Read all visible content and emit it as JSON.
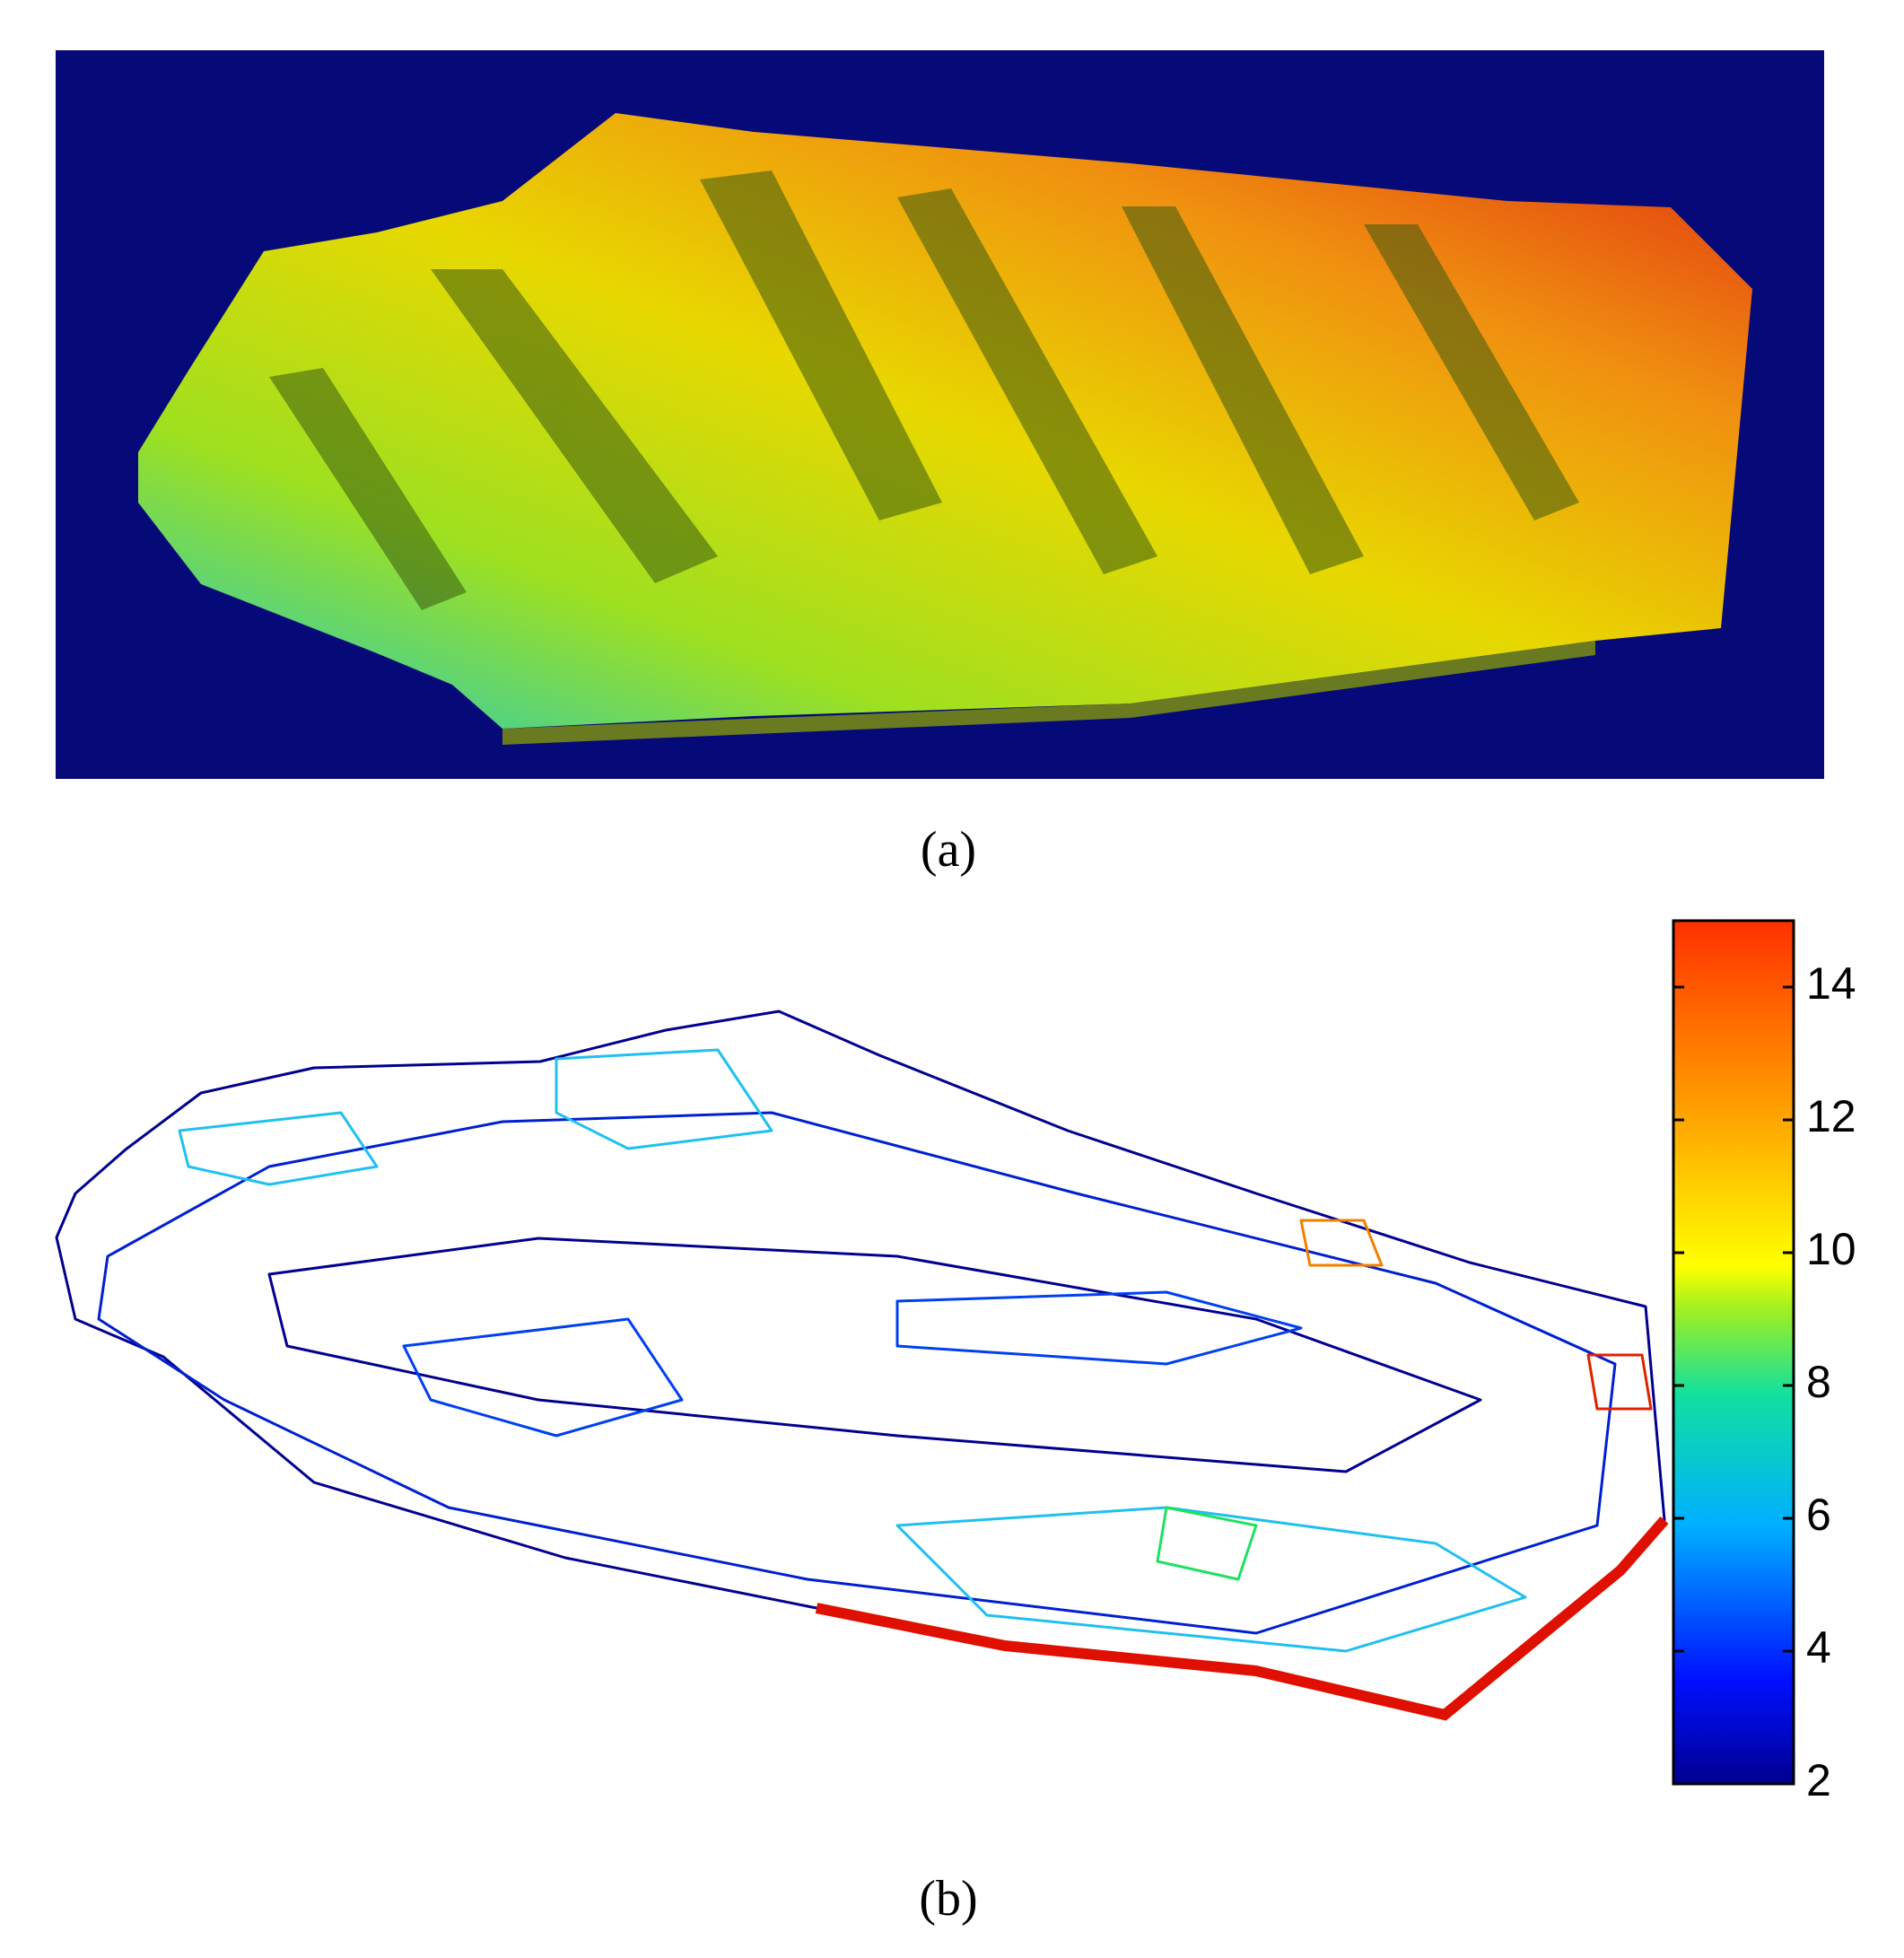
{
  "panels": [
    {
      "label": "(a)"
    },
    {
      "label": "(b)",
      "colorbar": {
        "lim": [
          2,
          15
        ],
        "ticks": [
          2,
          4,
          6,
          8,
          10,
          12,
          14
        ]
      }
    }
  ]
}
